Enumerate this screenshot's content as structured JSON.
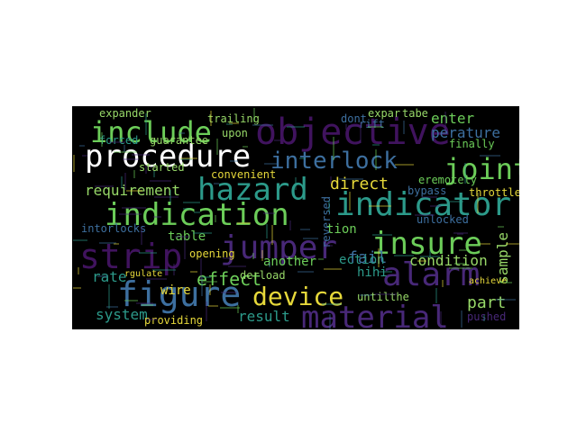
{
  "palette": {
    "background": "#000000",
    "page": "#ffffff",
    "yellow": "#e6d83a",
    "green": "#6ccd59",
    "teal": "#2c9a8a",
    "blue": "#3d6f9f",
    "purple": "#482878",
    "dark_purple": "#40135e",
    "light_green": "#97d868"
  },
  "words": [
    "objective",
    "procedure",
    "include",
    "hazard",
    "interlock",
    "joint",
    "indication",
    "indicator",
    "jumper",
    "strip",
    "insure",
    "alarm",
    "figure",
    "material",
    "device",
    "requirement",
    "direct",
    "effect",
    "system",
    "result",
    "condition",
    "sample",
    "part",
    "opening",
    "table",
    "another",
    "fail",
    "rate",
    "intorlocks",
    "throttle",
    "finally",
    "enter",
    "perature",
    "bypass",
    "eremotely",
    "reversed",
    "unlocked",
    "tion",
    "ection",
    "hihi",
    "pushed",
    "untilthe",
    "achieve",
    "derload",
    "wire",
    "rgulate",
    "providing",
    "started",
    "convenient",
    "upon",
    "trailing",
    "forced",
    "guarantee",
    "expander",
    "expar",
    "tabe",
    "rift",
    "dont"
  ]
}
